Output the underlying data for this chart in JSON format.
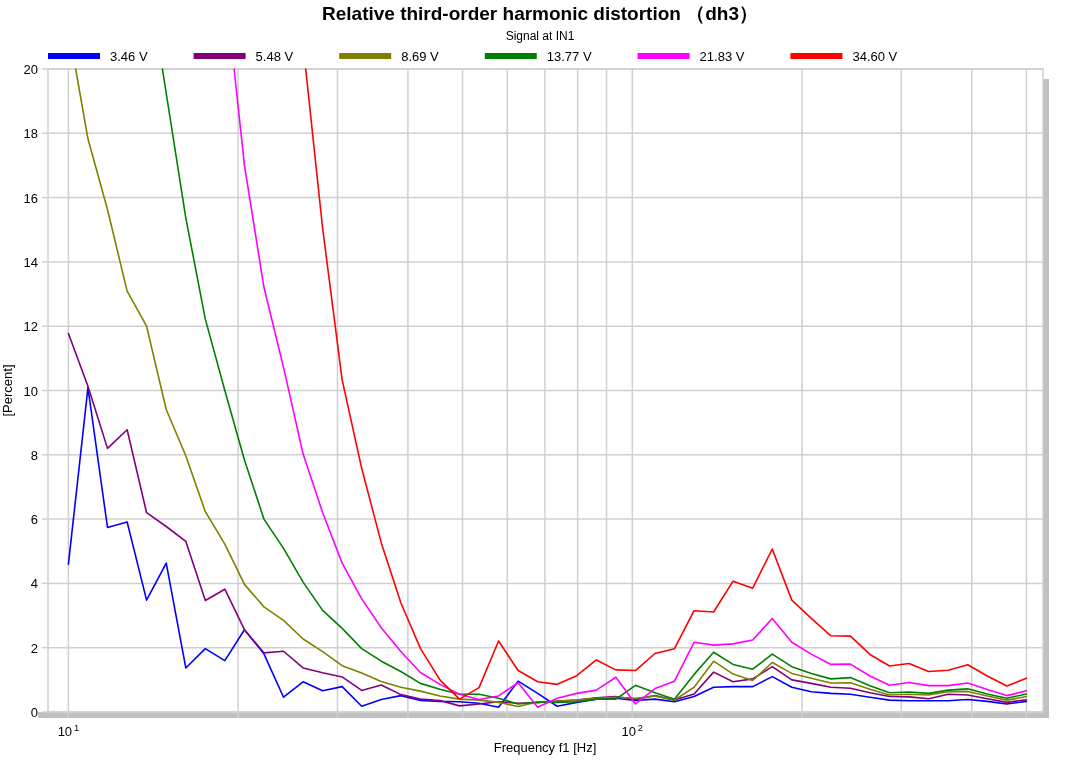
{
  "chart_data": {
    "type": "line",
    "title": "Relative third-order harmonic distortion （dh3）",
    "subtitle": "Signal at IN1",
    "xlabel": "Frequency f1  [Hz]",
    "ylabel": "[Percent]",
    "log": "x",
    "grid": true,
    "legend": "top",
    "xlim": [
      9.2,
      535
    ],
    "ylim": [
      0,
      20
    ],
    "xticks": [
      {
        "value": 10,
        "label": "10$^{1}$"
      },
      {
        "value": 20,
        "label": null
      },
      {
        "value": 30,
        "label": null
      },
      {
        "value": 40,
        "label": null
      },
      {
        "value": 50,
        "label": null
      },
      {
        "value": 60,
        "label": null
      },
      {
        "value": 70,
        "label": null
      },
      {
        "value": 80,
        "label": null
      },
      {
        "value": 90,
        "label": null
      },
      {
        "value": 100,
        "label": "10$^{2}$"
      },
      {
        "value": 200,
        "label": null
      },
      {
        "value": 300,
        "label": null
      },
      {
        "value": 400,
        "label": null
      },
      {
        "value": 500,
        "label": null
      }
    ],
    "yticks": [
      0,
      2,
      4,
      6,
      8,
      10,
      12,
      14,
      16,
      18,
      20
    ],
    "series": [
      {
        "name": "3.46 V",
        "color": "#0000ff",
        "x": [
          10,
          10.83,
          11.73,
          12.71,
          13.76,
          14.91,
          16.15,
          17.49,
          18.94,
          20.52,
          22.22,
          24.07,
          26.07,
          28.24,
          30.58,
          33.12,
          35.88,
          38.86,
          42.09,
          45.59,
          49.37,
          53.48,
          57.92,
          62.73,
          67.95,
          73.59,
          79.71,
          86.33,
          93.51,
          101.3,
          109.7,
          118.8,
          128.7,
          139.4,
          150.9,
          163.5,
          177.1,
          191.8,
          207.7,
          225,
          243.7,
          263.9,
          285.9,
          309.6,
          335.4,
          363.2,
          393.4,
          426.1,
          461.5,
          500
        ],
        "values": [
          4.6,
          10.09,
          5.74,
          5.91,
          3.48,
          4.63,
          1.37,
          1.97,
          1.6,
          2.56,
          1.81,
          0.46,
          0.94,
          0.66,
          0.79,
          0.18,
          0.39,
          0.51,
          0.36,
          0.33,
          0.32,
          0.27,
          0.15,
          0.96,
          0.58,
          0.18,
          0.3,
          0.4,
          0.43,
          0.36,
          0.4,
          0.32,
          0.48,
          0.77,
          0.79,
          0.79,
          1.1,
          0.77,
          0.63,
          0.58,
          0.55,
          0.46,
          0.37,
          0.35,
          0.35,
          0.35,
          0.39,
          0.33,
          0.25,
          0.33
        ]
      },
      {
        "name": "5.48 V",
        "color": "#800080",
        "x": [
          10,
          10.83,
          11.73,
          12.71,
          13.76,
          14.91,
          16.15,
          17.49,
          18.94,
          20.52,
          22.22,
          24.07,
          26.07,
          28.24,
          30.58,
          33.12,
          35.88,
          38.86,
          42.09,
          45.59,
          49.37,
          53.48,
          57.92,
          62.73,
          67.95,
          73.59,
          79.71,
          86.33,
          93.51,
          101.3,
          109.7,
          118.8,
          128.7,
          139.4,
          150.9,
          163.5,
          177.1,
          191.8,
          207.7,
          225,
          243.7,
          263.9,
          285.9,
          309.6,
          335.4,
          363.2,
          393.4,
          426.1,
          461.5,
          500
        ],
        "values": [
          11.77,
          10.13,
          8.2,
          8.78,
          6.2,
          5.77,
          5.31,
          3.47,
          3.82,
          2.56,
          1.84,
          1.89,
          1.37,
          1.22,
          1.09,
          0.67,
          0.84,
          0.54,
          0.4,
          0.36,
          0.19,
          0.25,
          0.32,
          0.27,
          0.29,
          0.34,
          0.37,
          0.44,
          0.48,
          0.39,
          0.51,
          0.37,
          0.56,
          1.24,
          0.94,
          1.03,
          1.41,
          1.0,
          0.89,
          0.77,
          0.74,
          0.6,
          0.48,
          0.47,
          0.41,
          0.55,
          0.53,
          0.41,
          0.3,
          0.38
        ]
      },
      {
        "name": "8.69 V",
        "color": "#808000",
        "x": [
          10.3,
          10.83,
          11.73,
          12.71,
          13.76,
          14.91,
          16.15,
          17.49,
          18.94,
          20.52,
          22.22,
          24.07,
          26.07,
          28.24,
          30.58,
          33.12,
          35.88,
          38.86,
          42.09,
          45.59,
          49.37,
          53.48,
          57.92,
          62.73,
          67.95,
          73.59,
          79.71,
          86.33,
          93.51,
          101.3,
          109.7,
          118.8,
          128.7,
          139.4,
          150.9,
          163.5,
          177.1,
          191.8,
          207.7,
          225,
          243.7,
          263.9,
          285.9,
          309.6,
          335.4,
          363.2,
          393.4,
          426.1,
          461.5,
          500
        ],
        "values": [
          20,
          17.83,
          15.63,
          13.09,
          12.0,
          9.41,
          7.97,
          6.23,
          5.22,
          3.97,
          3.27,
          2.85,
          2.27,
          1.88,
          1.44,
          1.21,
          0.95,
          0.77,
          0.65,
          0.5,
          0.4,
          0.37,
          0.3,
          0.17,
          0.31,
          0.33,
          0.37,
          0.43,
          0.46,
          0.43,
          0.5,
          0.37,
          0.77,
          1.58,
          1.18,
          0.98,
          1.54,
          1.2,
          1.05,
          0.9,
          0.91,
          0.71,
          0.53,
          0.55,
          0.53,
          0.63,
          0.64,
          0.5,
          0.37,
          0.48
        ]
      },
      {
        "name": "13.77 V",
        "color": "#008000",
        "x": [
          14.68,
          16.15,
          17.49,
          18.94,
          20.52,
          22.22,
          24.07,
          26.07,
          28.24,
          30.58,
          33.12,
          35.88,
          38.86,
          42.09,
          45.59,
          49.37,
          53.48,
          57.92,
          62.73,
          67.95,
          73.59,
          79.71,
          86.33,
          93.51,
          101.3,
          109.7,
          118.8,
          128.7,
          139.4,
          150.9,
          163.5,
          177.1,
          191.8,
          207.7,
          225,
          243.7,
          263.9,
          285.9,
          309.6,
          335.4,
          363.2,
          393.4,
          426.1,
          461.5,
          500
        ],
        "values": [
          20,
          15.37,
          12.22,
          10.0,
          7.84,
          6.0,
          5.09,
          4.04,
          3.16,
          2.6,
          1.97,
          1.58,
          1.26,
          0.89,
          0.71,
          0.55,
          0.55,
          0.43,
          0.25,
          0.31,
          0.3,
          0.32,
          0.4,
          0.4,
          0.83,
          0.6,
          0.4,
          1.17,
          1.86,
          1.48,
          1.33,
          1.8,
          1.41,
          1.2,
          1.03,
          1.07,
          0.82,
          0.6,
          0.62,
          0.58,
          0.68,
          0.72,
          0.56,
          0.43,
          0.56
        ]
      },
      {
        "name": "21.83 V",
        "color": "#ff00ff",
        "x": [
          19.67,
          20.52,
          22.22,
          24.07,
          26.07,
          28.24,
          30.58,
          33.12,
          35.88,
          38.86,
          42.09,
          45.59,
          49.37,
          53.48,
          57.92,
          62.73,
          67.95,
          73.59,
          79.71,
          86.33,
          93.51,
          101.3,
          109.7,
          118.8,
          128.7,
          139.4,
          150.9,
          163.5,
          177.1,
          191.8,
          207.7,
          225,
          243.7,
          263.9,
          285.9,
          309.6,
          335.4,
          363.2,
          393.4,
          426.1,
          461.5,
          500
        ],
        "values": [
          20,
          17.0,
          13.21,
          10.72,
          8.03,
          6.2,
          4.63,
          3.52,
          2.62,
          1.88,
          1.23,
          0.86,
          0.55,
          0.39,
          0.5,
          0.91,
          0.15,
          0.43,
          0.58,
          0.68,
          1.08,
          0.25,
          0.73,
          0.96,
          2.17,
          2.08,
          2.12,
          2.24,
          2.91,
          2.17,
          1.8,
          1.48,
          1.49,
          1.12,
          0.83,
          0.92,
          0.82,
          0.82,
          0.9,
          0.7,
          0.51,
          0.66
        ]
      },
      {
        "name": "34.60 V",
        "color": "#ff0000",
        "x": [
          26.35,
          28.24,
          30.58,
          33.12,
          35.88,
          38.86,
          42.09,
          45.59,
          49.37,
          53.48,
          57.92,
          62.73,
          67.95,
          73.59,
          79.71,
          86.33,
          93.51,
          101.3,
          109.7,
          118.8,
          128.7,
          139.4,
          150.9,
          163.5,
          177.1,
          191.8,
          207.7,
          225,
          243.7,
          263.9,
          285.9,
          309.6,
          335.4,
          363.2,
          393.4,
          426.1,
          461.5,
          500
        ],
        "values": [
          20,
          15.04,
          10.33,
          7.58,
          5.26,
          3.4,
          1.98,
          1.0,
          0.4,
          0.76,
          2.21,
          1.29,
          0.94,
          0.86,
          1.13,
          1.62,
          1.31,
          1.29,
          1.82,
          1.97,
          3.15,
          3.11,
          4.07,
          3.85,
          5.07,
          3.48,
          2.91,
          2.37,
          2.36,
          1.79,
          1.43,
          1.51,
          1.26,
          1.3,
          1.47,
          1.12,
          0.81,
          1.05
        ]
      }
    ]
  }
}
